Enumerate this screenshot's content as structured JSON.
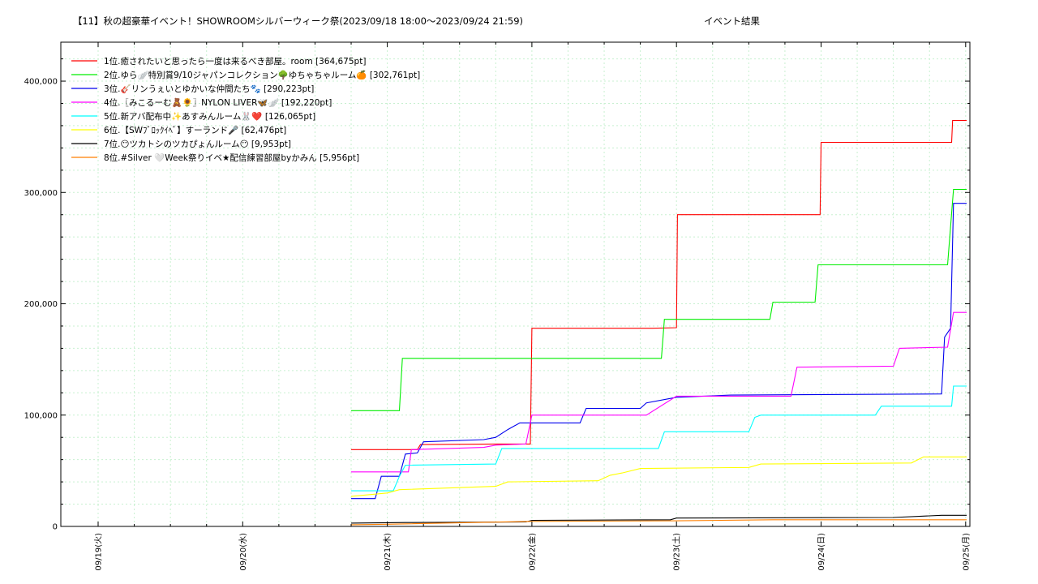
{
  "chart_data": {
    "type": "line",
    "title": "【11】秋の超豪華イベント！SHOWROOMシルバーウィーク祭(2023/09/18 18:00〜2023/09/24 21:59)",
    "subtitle": "イベント結果",
    "xlabel": "",
    "ylabel": "",
    "x_range": [
      "2023-09-19 00:00",
      "2023-09-25 00:15"
    ],
    "ylim": [
      0,
      435000
    ],
    "x_ticks": [
      "09/19(火)",
      "09/20(水)",
      "09/21(木)",
      "09/22(金)",
      "09/23(土)",
      "09/24(日)",
      "09/25(月)"
    ],
    "y_ticks": [
      "0",
      "100,000",
      "200,000",
      "300,000",
      "400,000"
    ],
    "y_tick_values": [
      0,
      100000,
      200000,
      300000,
      400000
    ],
    "grid": true,
    "legend_position": "top-left",
    "series": [
      {
        "name": "1位.癒されたいと思ったら一度は来るべき部屋。room [364,675pt]",
        "color": "#ff0000",
        "points": [
          [
            "2023-09-20 18:00",
            69000
          ],
          [
            "2023-09-21 05:00",
            69000
          ],
          [
            "2023-09-21 05:30",
            73500
          ],
          [
            "2023-09-21 18:30",
            74000
          ],
          [
            "2023-09-21 20:00",
            74000
          ],
          [
            "2023-09-21 23:45",
            74000
          ],
          [
            "2023-09-22 00:00",
            178000
          ],
          [
            "2023-09-22 20:00",
            178000
          ],
          [
            "2023-09-23 00:00",
            178500
          ],
          [
            "2023-09-23 00:10",
            280000
          ],
          [
            "2023-09-23 23:50",
            280000
          ],
          [
            "2023-09-24 00:00",
            345000
          ],
          [
            "2023-09-24 21:40",
            345000
          ],
          [
            "2023-09-24 21:50",
            364675
          ],
          [
            "2023-09-25 00:10",
            364675
          ]
        ]
      },
      {
        "name": "2位.ゆら🪽特別賞9/10ジャパンコレクション🌳ゆちゃちゃルーム🍊 [302,761pt]",
        "color": "#00ee00",
        "points": [
          [
            "2023-09-20 18:00",
            104000
          ],
          [
            "2023-09-21 02:00",
            104000
          ],
          [
            "2023-09-21 02:30",
            151000
          ],
          [
            "2023-09-22 21:30",
            151000
          ],
          [
            "2023-09-22 22:00",
            186000
          ],
          [
            "2023-09-23 15:30",
            186000
          ],
          [
            "2023-09-23 16:00",
            201500
          ],
          [
            "2023-09-23 23:00",
            201500
          ],
          [
            "2023-09-23 23:30",
            235000
          ],
          [
            "2023-09-24 21:00",
            235000
          ],
          [
            "2023-09-24 21:59",
            302761
          ],
          [
            "2023-09-25 00:10",
            302761
          ]
        ]
      },
      {
        "name": "3位.🎸リンうぇいとゆかいな仲間たち🐾 [290,223pt]",
        "color": "#0000ee",
        "points": [
          [
            "2023-09-20 18:00",
            25000
          ],
          [
            "2023-09-20 22:00",
            25000
          ],
          [
            "2023-09-20 23:00",
            45000
          ],
          [
            "2023-09-21 02:00",
            45000
          ],
          [
            "2023-09-21 03:00",
            65000
          ],
          [
            "2023-09-21 05:00",
            66000
          ],
          [
            "2023-09-21 06:00",
            76000
          ],
          [
            "2023-09-21 16:00",
            78000
          ],
          [
            "2023-09-21 18:00",
            80000
          ],
          [
            "2023-09-21 20:00",
            87000
          ],
          [
            "2023-09-21 22:00",
            93000
          ],
          [
            "2023-09-22 08:00",
            93000
          ],
          [
            "2023-09-22 09:00",
            106000
          ],
          [
            "2023-09-22 18:00",
            106000
          ],
          [
            "2023-09-22 19:00",
            111000
          ],
          [
            "2023-09-23 00:00",
            116000
          ],
          [
            "2023-09-23 09:00",
            118000
          ],
          [
            "2023-09-24 20:00",
            119000
          ],
          [
            "2023-09-24 20:30",
            170000
          ],
          [
            "2023-09-24 21:30",
            178000
          ],
          [
            "2023-09-24 21:59",
            290223
          ],
          [
            "2023-09-25 00:10",
            290223
          ]
        ]
      },
      {
        "name": "4位.〖みこるーむ🧸🌻〗NYLON LIVER🦋🪽    [192,220pt]",
        "color": "#ff00ff",
        "points": [
          [
            "2023-09-20 18:00",
            49000
          ],
          [
            "2023-09-21 03:30",
            49000
          ],
          [
            "2023-09-21 04:00",
            69000
          ],
          [
            "2023-09-21 16:00",
            71000
          ],
          [
            "2023-09-21 18:00",
            73000
          ],
          [
            "2023-09-21 23:00",
            74000
          ],
          [
            "2023-09-22 00:00",
            100000
          ],
          [
            "2023-09-22 19:00",
            100000
          ],
          [
            "2023-09-23 00:00",
            117000
          ],
          [
            "2023-09-23 19:00",
            117000
          ],
          [
            "2023-09-23 20:00",
            143000
          ],
          [
            "2023-09-24 12:00",
            144000
          ],
          [
            "2023-09-24 13:00",
            160000
          ],
          [
            "2023-09-24 21:00",
            161000
          ],
          [
            "2023-09-24 21:59",
            192220
          ],
          [
            "2023-09-25 00:10",
            192220
          ]
        ]
      },
      {
        "name": "5位.新アバ配布中✨あすみんルーム🐰❤️ [126,065pt]",
        "color": "#00ffff",
        "points": [
          [
            "2023-09-20 18:00",
            32000
          ],
          [
            "2023-09-21 01:00",
            32000
          ],
          [
            "2023-09-21 02:00",
            45000
          ],
          [
            "2023-09-21 03:00",
            55000
          ],
          [
            "2023-09-21 18:00",
            56000
          ],
          [
            "2023-09-21 19:00",
            70000
          ],
          [
            "2023-09-22 21:00",
            70000
          ],
          [
            "2023-09-22 22:00",
            85000
          ],
          [
            "2023-09-23 12:00",
            85000
          ],
          [
            "2023-09-23 13:00",
            98000
          ],
          [
            "2023-09-23 14:00",
            100000
          ],
          [
            "2023-09-24 09:00",
            100000
          ],
          [
            "2023-09-24 10:00",
            108000
          ],
          [
            "2023-09-24 21:40",
            108000
          ],
          [
            "2023-09-24 21:59",
            126065
          ],
          [
            "2023-09-25 00:10",
            126065
          ]
        ]
      },
      {
        "name": "6位.【SWﾌﾞﾛｯｸｲﾍﾞ】すーランド🎤 [62,476pt]",
        "color": "#ffff00",
        "points": [
          [
            "2023-09-20 18:00",
            27000
          ],
          [
            "2023-09-21 00:00",
            30000
          ],
          [
            "2023-09-21 02:00",
            33000
          ],
          [
            "2023-09-21 18:00",
            36000
          ],
          [
            "2023-09-21 20:00",
            40000
          ],
          [
            "2023-09-22 11:00",
            41000
          ],
          [
            "2023-09-22 13:00",
            46000
          ],
          [
            "2023-09-22 15:00",
            48000
          ],
          [
            "2023-09-22 18:00",
            52000
          ],
          [
            "2023-09-23 12:00",
            53000
          ],
          [
            "2023-09-23 14:00",
            56000
          ],
          [
            "2023-09-24 15:00",
            57000
          ],
          [
            "2023-09-24 17:00",
            62476
          ],
          [
            "2023-09-25 00:10",
            62476
          ]
        ]
      },
      {
        "name": "7位.😶ツカトシのツカぴょんルーム😶 [9,953pt]",
        "color": "#000000",
        "points": [
          [
            "2023-09-20 18:00",
            3000
          ],
          [
            "2023-09-21 03:00",
            3500
          ],
          [
            "2023-09-21 23:00",
            4000
          ],
          [
            "2023-09-22 00:00",
            5500
          ],
          [
            "2023-09-22 23:00",
            6000
          ],
          [
            "2023-09-23 00:00",
            7500
          ],
          [
            "2023-09-24 12:00",
            8000
          ],
          [
            "2023-09-24 20:00",
            9953
          ],
          [
            "2023-09-25 00:10",
            9953
          ]
        ]
      },
      {
        "name": "8位.#Silver 🤍Week祭りイベ★配信練習部屋byかみん [5,956pt]",
        "color": "#ff7f00",
        "points": [
          [
            "2023-09-20 18:00",
            1500
          ],
          [
            "2023-09-21 00:00",
            2000
          ],
          [
            "2023-09-22 00:00",
            4500
          ],
          [
            "2023-09-23 00:00",
            5000
          ],
          [
            "2023-09-23 16:00",
            5956
          ],
          [
            "2023-09-25 00:10",
            5956
          ]
        ]
      }
    ]
  }
}
